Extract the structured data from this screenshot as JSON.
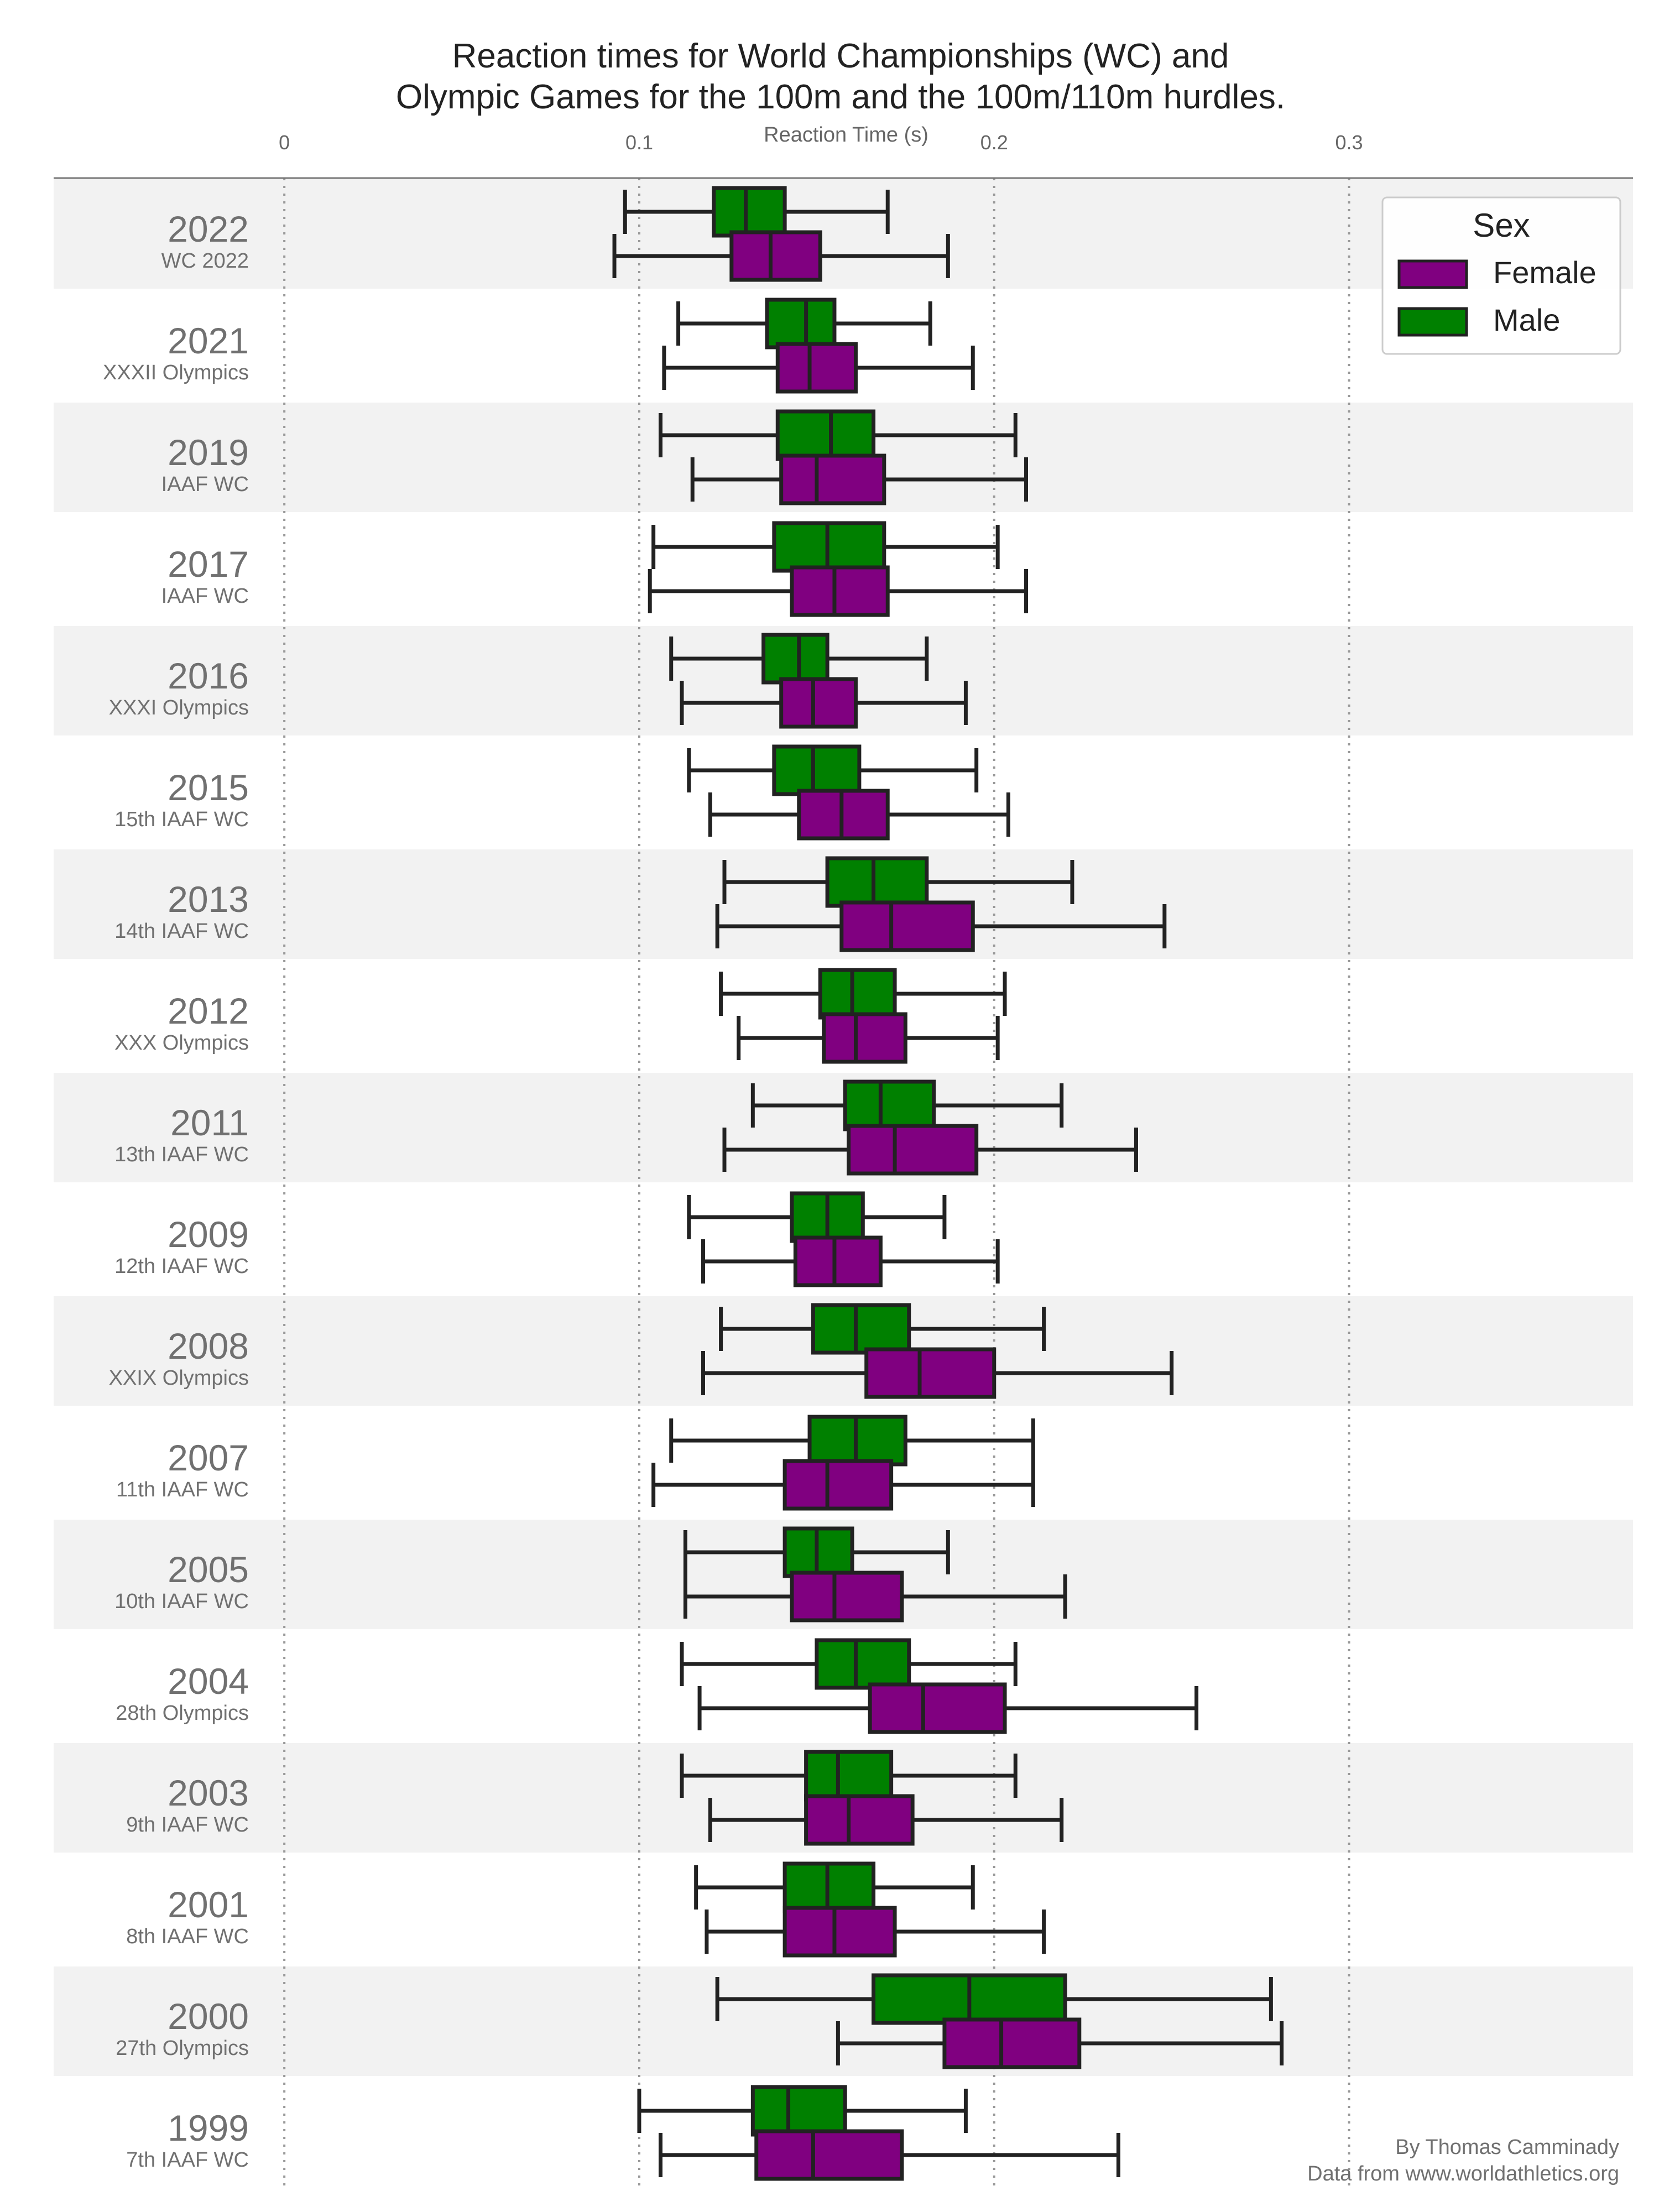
{
  "chart_data": {
    "type": "box",
    "orientation": "horizontal",
    "title": "Reaction times for World Championships (WC) and\nOlympic Games for the 100m and the 100m/110m hurdles.",
    "xlabel": "Reaction Time (s)",
    "xlim": [
      -0.065,
      0.38
    ],
    "xticks": [
      0,
      0.1,
      0.2,
      0.3
    ],
    "xtick_labels": [
      "0",
      "0.1",
      "0.2",
      "0.3"
    ],
    "axis_position": "top",
    "grid": "vertical dotted lines at ticks",
    "legend": {
      "title": "Sex",
      "placement": "top-right",
      "entries": [
        {
          "label": "Female",
          "color": "#800080"
        },
        {
          "label": "Male",
          "color": "#008000"
        }
      ]
    },
    "series_colors": {
      "male": "#008000",
      "female": "#800080"
    },
    "band_color": "#f2f2f2",
    "credits": [
      "By Thomas Camminady",
      "Data from www.worldathletics.org"
    ],
    "groups": [
      {
        "year": "2022",
        "event": "WC 2022",
        "male": {
          "whislo": 0.096,
          "q1": 0.121,
          "med": 0.13,
          "q3": 0.141,
          "whishi": 0.17
        },
        "female": {
          "whislo": 0.093,
          "q1": 0.126,
          "med": 0.137,
          "q3": 0.151,
          "whishi": 0.187
        }
      },
      {
        "year": "2021",
        "event": "XXXII Olympics",
        "male": {
          "whislo": 0.111,
          "q1": 0.136,
          "med": 0.147,
          "q3": 0.155,
          "whishi": 0.182
        },
        "female": {
          "whislo": 0.107,
          "q1": 0.139,
          "med": 0.148,
          "q3": 0.161,
          "whishi": 0.194
        }
      },
      {
        "year": "2019",
        "event": "IAAF WC",
        "male": {
          "whislo": 0.106,
          "q1": 0.139,
          "med": 0.154,
          "q3": 0.166,
          "whishi": 0.206
        },
        "female": {
          "whislo": 0.115,
          "q1": 0.14,
          "med": 0.15,
          "q3": 0.169,
          "whishi": 0.209
        }
      },
      {
        "year": "2017",
        "event": "IAAF WC",
        "male": {
          "whislo": 0.104,
          "q1": 0.138,
          "med": 0.153,
          "q3": 0.169,
          "whishi": 0.201
        },
        "female": {
          "whislo": 0.103,
          "q1": 0.143,
          "med": 0.155,
          "q3": 0.17,
          "whishi": 0.209
        }
      },
      {
        "year": "2016",
        "event": "XXXI Olympics",
        "male": {
          "whislo": 0.109,
          "q1": 0.135,
          "med": 0.145,
          "q3": 0.153,
          "whishi": 0.181
        },
        "female": {
          "whislo": 0.112,
          "q1": 0.14,
          "med": 0.149,
          "q3": 0.161,
          "whishi": 0.192
        }
      },
      {
        "year": "2015",
        "event": "15th IAAF WC",
        "male": {
          "whislo": 0.114,
          "q1": 0.138,
          "med": 0.149,
          "q3": 0.162,
          "whishi": 0.195
        },
        "female": {
          "whislo": 0.12,
          "q1": 0.145,
          "med": 0.157,
          "q3": 0.17,
          "whishi": 0.204
        }
      },
      {
        "year": "2013",
        "event": "14th IAAF WC",
        "male": {
          "whislo": 0.124,
          "q1": 0.153,
          "med": 0.166,
          "q3": 0.181,
          "whishi": 0.222
        },
        "female": {
          "whislo": 0.122,
          "q1": 0.157,
          "med": 0.171,
          "q3": 0.194,
          "whishi": 0.248
        }
      },
      {
        "year": "2012",
        "event": "XXX Olympics",
        "male": {
          "whislo": 0.123,
          "q1": 0.151,
          "med": 0.16,
          "q3": 0.172,
          "whishi": 0.203
        },
        "female": {
          "whislo": 0.128,
          "q1": 0.152,
          "med": 0.161,
          "q3": 0.175,
          "whishi": 0.201
        }
      },
      {
        "year": "2011",
        "event": "13th IAAF WC",
        "male": {
          "whislo": 0.132,
          "q1": 0.158,
          "med": 0.168,
          "q3": 0.183,
          "whishi": 0.219
        },
        "female": {
          "whislo": 0.124,
          "q1": 0.159,
          "med": 0.172,
          "q3": 0.195,
          "whishi": 0.24
        }
      },
      {
        "year": "2009",
        "event": "12th IAAF WC",
        "male": {
          "whislo": 0.114,
          "q1": 0.143,
          "med": 0.153,
          "q3": 0.163,
          "whishi": 0.186
        },
        "female": {
          "whislo": 0.118,
          "q1": 0.144,
          "med": 0.155,
          "q3": 0.168,
          "whishi": 0.201
        }
      },
      {
        "year": "2008",
        "event": "XXIX Olympics",
        "male": {
          "whislo": 0.123,
          "q1": 0.149,
          "med": 0.161,
          "q3": 0.176,
          "whishi": 0.214
        },
        "female": {
          "whislo": 0.118,
          "q1": 0.164,
          "med": 0.179,
          "q3": 0.2,
          "whishi": 0.25
        }
      },
      {
        "year": "2007",
        "event": "11th IAAF WC",
        "male": {
          "whislo": 0.109,
          "q1": 0.148,
          "med": 0.161,
          "q3": 0.175,
          "whishi": 0.211
        },
        "female": {
          "whislo": 0.104,
          "q1": 0.141,
          "med": 0.153,
          "q3": 0.171,
          "whishi": 0.211
        }
      },
      {
        "year": "2005",
        "event": "10th IAAF WC",
        "male": {
          "whislo": 0.113,
          "q1": 0.141,
          "med": 0.15,
          "q3": 0.16,
          "whishi": 0.187
        },
        "female": {
          "whislo": 0.113,
          "q1": 0.143,
          "med": 0.155,
          "q3": 0.174,
          "whishi": 0.22
        }
      },
      {
        "year": "2004",
        "event": "28th Olympics",
        "male": {
          "whislo": 0.112,
          "q1": 0.15,
          "med": 0.161,
          "q3": 0.176,
          "whishi": 0.206
        },
        "female": {
          "whislo": 0.117,
          "q1": 0.165,
          "med": 0.18,
          "q3": 0.203,
          "whishi": 0.257
        }
      },
      {
        "year": "2003",
        "event": "9th IAAF WC",
        "male": {
          "whislo": 0.112,
          "q1": 0.147,
          "med": 0.156,
          "q3": 0.171,
          "whishi": 0.206
        },
        "female": {
          "whislo": 0.12,
          "q1": 0.147,
          "med": 0.159,
          "q3": 0.177,
          "whishi": 0.219
        }
      },
      {
        "year": "2001",
        "event": "8th IAAF WC",
        "male": {
          "whislo": 0.116,
          "q1": 0.141,
          "med": 0.153,
          "q3": 0.166,
          "whishi": 0.194
        },
        "female": {
          "whislo": 0.119,
          "q1": 0.141,
          "med": 0.155,
          "q3": 0.172,
          "whishi": 0.214
        }
      },
      {
        "year": "2000",
        "event": "27th Olympics",
        "male": {
          "whislo": 0.122,
          "q1": 0.166,
          "med": 0.193,
          "q3": 0.22,
          "whishi": 0.278
        },
        "female": {
          "whislo": 0.156,
          "q1": 0.186,
          "med": 0.202,
          "q3": 0.224,
          "whishi": 0.281
        }
      },
      {
        "year": "1999",
        "event": "7th IAAF WC",
        "male": {
          "whislo": 0.1,
          "q1": 0.132,
          "med": 0.142,
          "q3": 0.158,
          "whishi": 0.192
        },
        "female": {
          "whislo": 0.106,
          "q1": 0.133,
          "med": 0.149,
          "q3": 0.174,
          "whishi": 0.235
        }
      }
    ]
  }
}
